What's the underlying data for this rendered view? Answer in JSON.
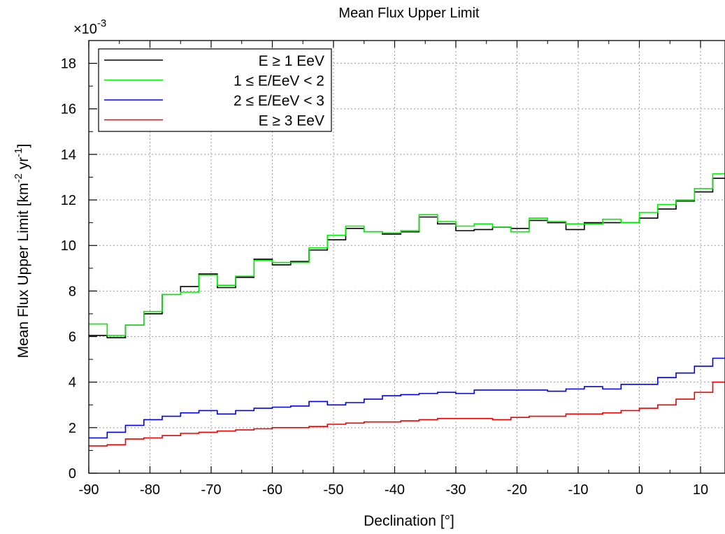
{
  "chart_data": {
    "type": "line",
    "step": true,
    "title": "Mean Flux Upper Limit",
    "xlabel": "Declination [°]",
    "ylabel": "Mean Flux Upper Limit [km^-2 yr^-1]",
    "ylabel_parts": {
      "main": "Mean Flux Upper Limit [km",
      "exp1": "-2",
      "mid": " yr",
      "exp2": "-1",
      "end": "]"
    },
    "y_multiplier": {
      "prefix": "×10",
      "exponent": "-3"
    },
    "xlim": [
      -90,
      14
    ],
    "ylim": [
      0,
      19
    ],
    "x_ticks": [
      -90,
      -80,
      -70,
      -60,
      -50,
      -40,
      -30,
      -20,
      -10,
      0,
      10
    ],
    "y_ticks": [
      0,
      2,
      4,
      6,
      8,
      10,
      12,
      14,
      16,
      18
    ],
    "grid": true,
    "legend_position": "top-left",
    "x_edges": [
      -90,
      -87,
      -84,
      -81,
      -78,
      -75,
      -72,
      -69,
      -66,
      -63,
      -60,
      -57,
      -54,
      -51,
      -48,
      -45,
      -42,
      -39,
      -36,
      -33,
      -30,
      -27,
      -24,
      -21,
      -18,
      -15,
      -12,
      -9,
      -6,
      -3,
      0,
      3,
      6,
      9,
      12,
      14
    ],
    "series": [
      {
        "name": "E ≥ 1 EeV",
        "color": "#000000",
        "values": [
          6.05,
          5.95,
          6.5,
          7.0,
          7.85,
          8.2,
          8.75,
          8.15,
          8.6,
          9.4,
          9.15,
          9.3,
          9.8,
          10.25,
          10.75,
          10.6,
          10.5,
          10.6,
          11.25,
          10.95,
          10.65,
          10.7,
          10.8,
          10.75,
          11.1,
          11.0,
          10.7,
          11.0,
          11.0,
          11.0,
          11.2,
          11.6,
          11.95,
          12.35,
          12.95
        ]
      },
      {
        "name": "1 ≤ E/EeV < 2",
        "color": "#00ee00",
        "values": [
          6.55,
          6.05,
          6.5,
          7.1,
          7.85,
          7.95,
          8.7,
          8.25,
          8.65,
          9.35,
          9.25,
          9.25,
          9.9,
          10.45,
          10.85,
          10.6,
          10.55,
          10.65,
          11.35,
          11.05,
          10.85,
          10.95,
          10.8,
          10.6,
          11.2,
          11.05,
          10.95,
          10.95,
          11.15,
          11.0,
          11.45,
          11.8,
          12.0,
          12.5,
          13.15
        ]
      },
      {
        "name": "2 ≤ E/EeV < 3",
        "color": "#0000ee",
        "values": [
          1.55,
          1.8,
          2.1,
          2.35,
          2.5,
          2.65,
          2.75,
          2.6,
          2.75,
          2.85,
          2.9,
          2.95,
          3.15,
          3.0,
          3.1,
          3.25,
          3.4,
          3.45,
          3.5,
          3.55,
          3.5,
          3.65,
          3.65,
          3.65,
          3.65,
          3.6,
          3.7,
          3.8,
          3.7,
          3.9,
          3.9,
          4.2,
          4.4,
          4.7,
          5.05
        ]
      },
      {
        "name": "E ≥ 3 EeV",
        "color": "#ee0000",
        "values": [
          1.2,
          1.25,
          1.5,
          1.55,
          1.65,
          1.75,
          1.8,
          1.85,
          1.9,
          1.95,
          2.0,
          2.0,
          2.05,
          2.15,
          2.2,
          2.25,
          2.25,
          2.3,
          2.35,
          2.4,
          2.4,
          2.4,
          2.35,
          2.45,
          2.5,
          2.5,
          2.6,
          2.6,
          2.65,
          2.75,
          2.85,
          3.0,
          3.25,
          3.55,
          4.0
        ]
      }
    ]
  }
}
